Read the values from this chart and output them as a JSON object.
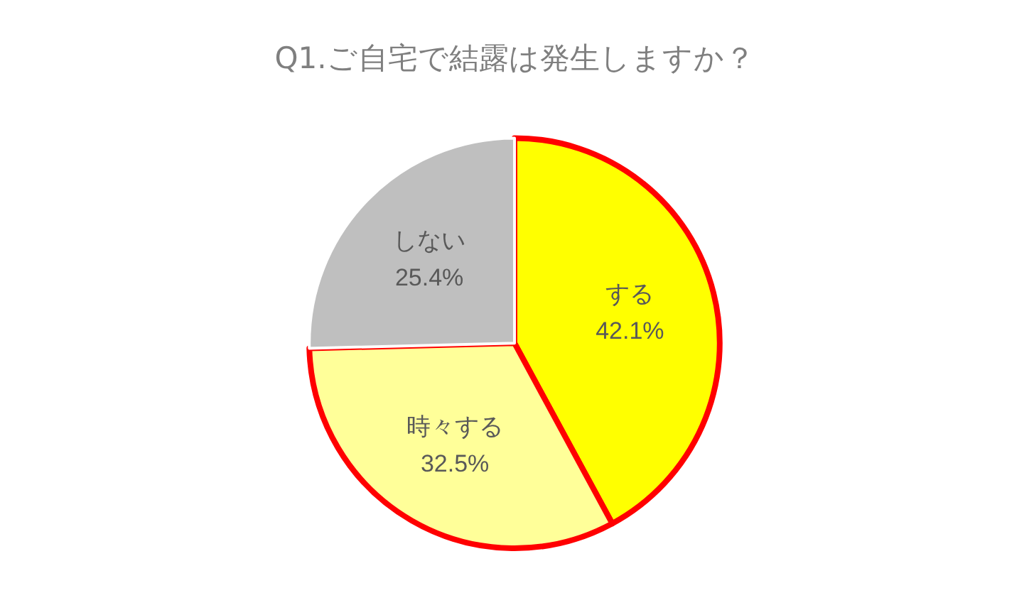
{
  "chart_data": {
    "type": "pie",
    "title": "Q1.ご自宅で結露は発生しますか？",
    "categories": [
      "する",
      "時々する",
      "しない"
    ],
    "values": [
      42.1,
      32.5,
      25.4
    ],
    "value_labels": [
      "42.1%",
      "32.5%",
      "25.4%"
    ],
    "colors": [
      "#ffff00",
      "#ffff99",
      "#bfbfbf"
    ],
    "legend": false
  }
}
